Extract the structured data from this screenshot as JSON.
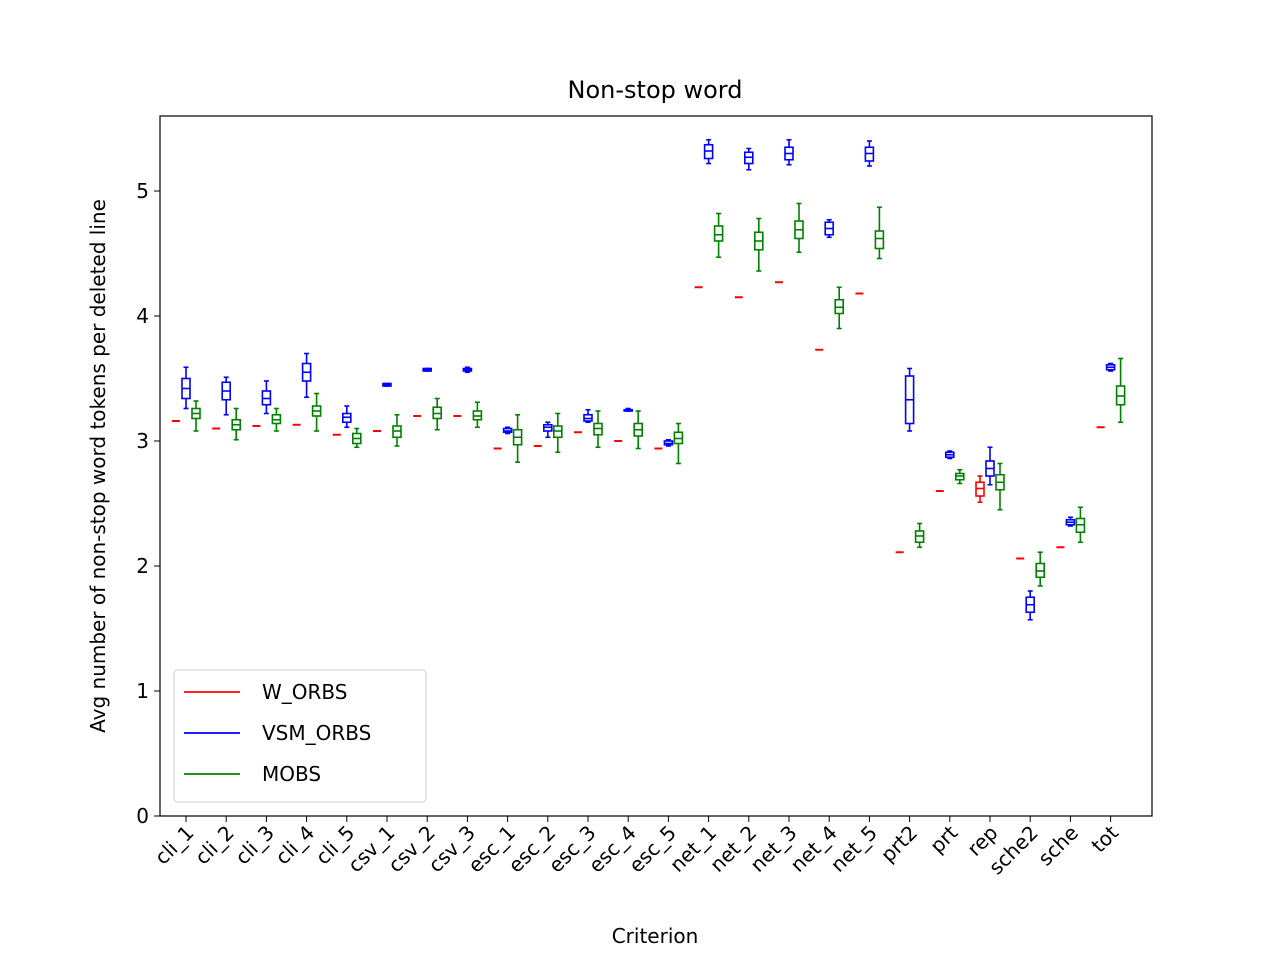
{
  "chart_data": {
    "type": "box",
    "title": "Non-stop word",
    "xlabel": "Criterion",
    "ylabel": "Avg number of non-stop word tokens per deleted line",
    "ylim": [
      0,
      5.6
    ],
    "yticks": [
      0,
      1,
      2,
      3,
      4,
      5
    ],
    "grid": false,
    "legend": "lower-left",
    "categories": [
      "cli_1",
      "cli_2",
      "cli_3",
      "cli_4",
      "cli_5",
      "csv_1",
      "csv_2",
      "csv_3",
      "esc_1",
      "esc_2",
      "esc_3",
      "esc_4",
      "esc_5",
      "net_1",
      "net_2",
      "net_3",
      "net_4",
      "net_5",
      "prt2",
      "prt",
      "rep",
      "sche2",
      "sche",
      "tot"
    ],
    "series": [
      {
        "name": "W_ORBS",
        "color": "#ff0000",
        "boxes": [
          [
            3.16,
            3.16,
            3.16,
            3.16,
            3.16
          ],
          [
            3.1,
            3.1,
            3.1,
            3.1,
            3.1
          ],
          [
            3.12,
            3.12,
            3.12,
            3.12,
            3.12
          ],
          [
            3.13,
            3.13,
            3.13,
            3.13,
            3.13
          ],
          [
            3.05,
            3.05,
            3.05,
            3.05,
            3.05
          ],
          [
            3.08,
            3.08,
            3.08,
            3.08,
            3.08
          ],
          [
            3.2,
            3.2,
            3.2,
            3.2,
            3.2
          ],
          [
            3.2,
            3.2,
            3.2,
            3.2,
            3.2
          ],
          [
            2.94,
            2.94,
            2.94,
            2.94,
            2.94
          ],
          [
            2.96,
            2.96,
            2.96,
            2.96,
            2.96
          ],
          [
            3.07,
            3.07,
            3.07,
            3.07,
            3.07
          ],
          [
            3.0,
            3.0,
            3.0,
            3.0,
            3.0
          ],
          [
            2.94,
            2.94,
            2.94,
            2.94,
            2.94
          ],
          [
            4.23,
            4.23,
            4.23,
            4.23,
            4.23
          ],
          [
            4.15,
            4.15,
            4.15,
            4.15,
            4.15
          ],
          [
            4.27,
            4.27,
            4.27,
            4.27,
            4.27
          ],
          [
            3.73,
            3.73,
            3.73,
            3.73,
            3.73
          ],
          [
            4.18,
            4.18,
            4.18,
            4.18,
            4.18
          ],
          [
            2.11,
            2.11,
            2.11,
            2.11,
            2.11
          ],
          [
            2.6,
            2.6,
            2.6,
            2.6,
            2.6
          ],
          [
            2.51,
            2.56,
            2.62,
            2.67,
            2.72
          ],
          [
            2.06,
            2.06,
            2.06,
            2.06,
            2.06
          ],
          [
            2.15,
            2.15,
            2.15,
            2.15,
            2.15
          ],
          [
            3.11,
            3.11,
            3.11,
            3.11,
            3.11
          ]
        ]
      },
      {
        "name": "VSM_ORBS",
        "color": "#0000ff",
        "boxes": [
          [
            3.26,
            3.34,
            3.42,
            3.5,
            3.59
          ],
          [
            3.21,
            3.33,
            3.4,
            3.47,
            3.51
          ],
          [
            3.22,
            3.29,
            3.34,
            3.4,
            3.48
          ],
          [
            3.35,
            3.48,
            3.55,
            3.62,
            3.7
          ],
          [
            3.11,
            3.15,
            3.19,
            3.22,
            3.28
          ],
          [
            3.44,
            3.44,
            3.45,
            3.46,
            3.46
          ],
          [
            3.56,
            3.56,
            3.57,
            3.58,
            3.58
          ],
          [
            3.55,
            3.56,
            3.57,
            3.58,
            3.59
          ],
          [
            3.06,
            3.07,
            3.08,
            3.1,
            3.11
          ],
          [
            3.03,
            3.08,
            3.11,
            3.13,
            3.15
          ],
          [
            3.15,
            3.16,
            3.18,
            3.21,
            3.25
          ],
          [
            3.24,
            3.24,
            3.25,
            3.25,
            3.26
          ],
          [
            2.96,
            2.97,
            2.98,
            3.0,
            3.01
          ],
          [
            5.22,
            5.26,
            5.32,
            5.37,
            5.41
          ],
          [
            5.17,
            5.22,
            5.27,
            5.31,
            5.34
          ],
          [
            5.21,
            5.25,
            5.3,
            5.35,
            5.41
          ],
          [
            4.63,
            4.65,
            4.7,
            4.75,
            4.77
          ],
          [
            5.2,
            5.24,
            5.3,
            5.35,
            5.4
          ],
          [
            3.08,
            3.14,
            3.33,
            3.52,
            3.58
          ],
          [
            2.86,
            2.87,
            2.89,
            2.91,
            2.92
          ],
          [
            2.65,
            2.72,
            2.78,
            2.84,
            2.95
          ],
          [
            1.57,
            1.63,
            1.69,
            1.75,
            1.8
          ],
          [
            2.32,
            2.33,
            2.35,
            2.37,
            2.39
          ],
          [
            3.56,
            3.57,
            3.59,
            3.61,
            3.62
          ]
        ]
      },
      {
        "name": "MOBS",
        "color": "#008000",
        "boxes": [
          [
            3.08,
            3.18,
            3.22,
            3.26,
            3.32
          ],
          [
            3.01,
            3.09,
            3.13,
            3.17,
            3.26
          ],
          [
            3.08,
            3.14,
            3.17,
            3.21,
            3.26
          ],
          [
            3.08,
            3.2,
            3.24,
            3.28,
            3.38
          ],
          [
            2.95,
            2.98,
            3.02,
            3.06,
            3.1
          ],
          [
            2.96,
            3.03,
            3.08,
            3.12,
            3.21
          ],
          [
            3.09,
            3.18,
            3.22,
            3.27,
            3.34
          ],
          [
            3.11,
            3.17,
            3.2,
            3.24,
            3.31
          ],
          [
            2.83,
            2.97,
            3.03,
            3.09,
            3.21
          ],
          [
            2.91,
            3.03,
            3.08,
            3.12,
            3.22
          ],
          [
            2.95,
            3.05,
            3.1,
            3.14,
            3.24
          ],
          [
            2.94,
            3.04,
            3.09,
            3.14,
            3.24
          ],
          [
            2.82,
            2.98,
            3.02,
            3.07,
            3.14
          ],
          [
            4.47,
            4.6,
            4.65,
            4.72,
            4.82
          ],
          [
            4.36,
            4.53,
            4.6,
            4.67,
            4.78
          ],
          [
            4.51,
            4.62,
            4.69,
            4.76,
            4.9
          ],
          [
            3.9,
            4.02,
            4.07,
            4.13,
            4.23
          ],
          [
            4.46,
            4.54,
            4.62,
            4.68,
            4.87
          ],
          [
            2.15,
            2.19,
            2.24,
            2.28,
            2.34
          ],
          [
            2.66,
            2.69,
            2.72,
            2.74,
            2.77
          ],
          [
            2.45,
            2.61,
            2.67,
            2.73,
            2.82
          ],
          [
            1.84,
            1.91,
            1.96,
            2.02,
            2.11
          ],
          [
            2.19,
            2.27,
            2.33,
            2.38,
            2.47
          ],
          [
            3.15,
            3.29,
            3.36,
            3.44,
            3.66
          ]
        ]
      }
    ]
  }
}
